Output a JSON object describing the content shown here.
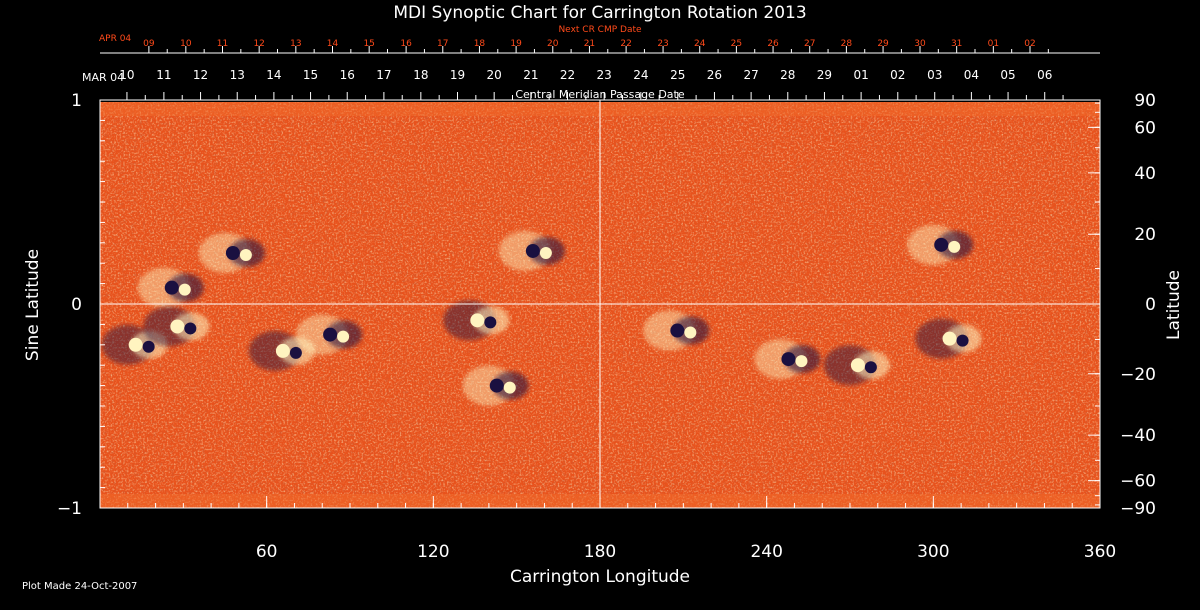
{
  "colors": {
    "background": "#000000",
    "axes": "#ffffff",
    "next_cr_labels": "#ff4a1a",
    "map_base": "#e8521c",
    "positive_polarity": "#fff4c0",
    "negative_polarity": "#1a1040"
  },
  "chart_data": {
    "type": "heatmap",
    "title": "MDI Synoptic Chart for Carrington Rotation 2013",
    "xlabel": "Carrington Longitude",
    "ylabel_left": "Sine Latitude",
    "ylabel_right": "Latitude",
    "top_axis_title": "Central Meridian Passage Date",
    "next_axis_title": "Next CR CMP Date",
    "footer": "Plot Made 24-Oct-2007",
    "xlim": [
      0,
      360
    ],
    "ylim": [
      -1,
      1
    ],
    "x_ticks": [
      60,
      120,
      180,
      240,
      300,
      360
    ],
    "x_tick_labels": [
      "60",
      "120",
      "180",
      "240",
      "300",
      "360"
    ],
    "y_ticks_left": [
      1,
      0,
      -1
    ],
    "y_tick_labels_left": [
      "1",
      "0",
      "−1"
    ],
    "y_ticks_right_deg": [
      90,
      60,
      40,
      20,
      0,
      -20,
      -40,
      -60,
      -90
    ],
    "y_tick_labels_right": [
      "90",
      "60",
      "40",
      "20",
      "0",
      "−20",
      "−40",
      "−60",
      "−90"
    ],
    "cmp_dates": {
      "first_label": "MAR 04",
      "labels": [
        "06",
        "05",
        "04",
        "03",
        "02",
        "01",
        "29",
        "28",
        "27",
        "26",
        "25",
        "24",
        "23",
        "22",
        "21",
        "20",
        "19",
        "18",
        "17",
        "16",
        "15",
        "14",
        "13",
        "12",
        "11",
        "10"
      ],
      "longitudes": [
        340.1,
        326.9,
        313.7,
        300.5,
        287.2,
        274.0,
        260.8,
        247.6,
        234.4,
        221.2,
        208.0,
        194.7,
        181.5,
        168.3,
        155.1,
        141.9,
        128.7,
        115.5,
        102.2,
        89.0,
        75.8,
        62.6,
        49.4,
        36.2,
        23.0,
        9.7
      ]
    },
    "next_cr_dates": {
      "first_label": "APR 04",
      "labels": [
        "02",
        "01",
        "31",
        "30",
        "29",
        "28",
        "27",
        "26",
        "25",
        "24",
        "23",
        "22",
        "21",
        "20",
        "19",
        "18",
        "17",
        "16",
        "15",
        "14",
        "13",
        "12",
        "11",
        "10",
        "09"
      ],
      "longitudes": [
        334.8,
        321.6,
        308.4,
        295.2,
        281.9,
        268.7,
        255.5,
        242.3,
        229.1,
        215.9,
        202.7,
        189.4,
        176.2,
        163.0,
        149.8,
        136.6,
        123.4,
        110.2,
        96.9,
        83.7,
        70.5,
        57.3,
        44.1,
        30.9,
        17.6
      ]
    },
    "grid": false,
    "crosshair": {
      "longitude": 180,
      "sine_latitude": 0
    },
    "active_regions": [
      {
        "lon": 15,
        "sinlat": -0.2,
        "leading": "positive"
      },
      {
        "lon": 28,
        "sinlat": 0.08,
        "leading": "negative"
      },
      {
        "lon": 30,
        "sinlat": -0.11,
        "leading": "positive"
      },
      {
        "lon": 50,
        "sinlat": 0.25,
        "leading": "negative"
      },
      {
        "lon": 68,
        "sinlat": -0.23,
        "leading": "positive"
      },
      {
        "lon": 85,
        "sinlat": -0.15,
        "leading": "negative"
      },
      {
        "lon": 138,
        "sinlat": -0.08,
        "leading": "positive"
      },
      {
        "lon": 145,
        "sinlat": -0.4,
        "leading": "negative"
      },
      {
        "lon": 158,
        "sinlat": 0.26,
        "leading": "negative"
      },
      {
        "lon": 210,
        "sinlat": -0.13,
        "leading": "negative"
      },
      {
        "lon": 250,
        "sinlat": -0.27,
        "leading": "negative"
      },
      {
        "lon": 275,
        "sinlat": -0.3,
        "leading": "positive"
      },
      {
        "lon": 305,
        "sinlat": 0.29,
        "leading": "negative"
      },
      {
        "lon": 308,
        "sinlat": -0.17,
        "leading": "positive"
      }
    ]
  }
}
